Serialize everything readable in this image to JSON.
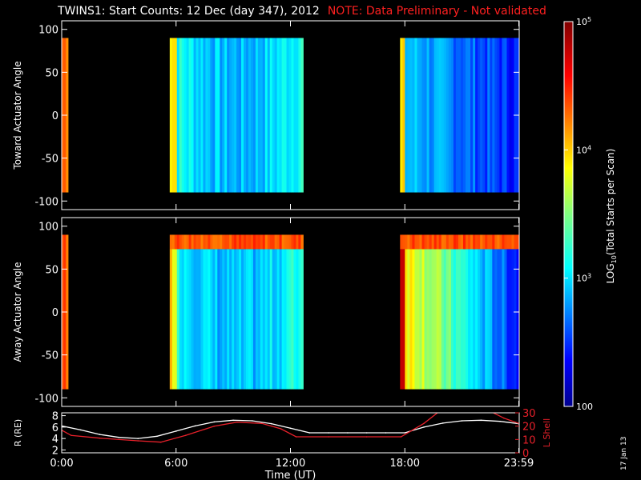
{
  "header": {
    "title": "TWINS1: Start Counts: 12 Dec (day 347), 2012",
    "note": "NOTE: Data Preliminary - Not validated"
  },
  "footer": {
    "date_stamp": "17 Jan 13"
  },
  "colors": {
    "background": "#000000",
    "axis": "#ffffff",
    "note": "#ff2020",
    "r_line": "#ffffff",
    "l_shell_line": "#e8202a"
  },
  "chart_data": [
    {
      "type": "heatmap",
      "id": "toward",
      "title": "",
      "ylabel": "Toward Actuator Angle",
      "xlabel": "",
      "xlim": [
        "0:00",
        "23:59"
      ],
      "ylim": [
        -110,
        110
      ],
      "yticks": [
        100,
        50,
        0,
        -50,
        -100
      ],
      "y_data_range": [
        -90,
        90
      ],
      "data_intervals_ut": [
        [
          "0:00",
          "0:20"
        ],
        [
          "5:40",
          "12:40"
        ],
        [
          "17:45",
          "23:59"
        ]
      ],
      "colorscale": "log10 counts, 10^2 to 10^5",
      "grid": false
    },
    {
      "type": "heatmap",
      "id": "away",
      "title": "",
      "ylabel": "Away Actuator Angle",
      "xlabel": "",
      "xlim": [
        "0:00",
        "23:59"
      ],
      "ylim": [
        -110,
        110
      ],
      "yticks": [
        100,
        50,
        0,
        -50,
        -100
      ],
      "y_data_range": [
        -90,
        90
      ],
      "data_intervals_ut": [
        [
          "0:00",
          "0:20"
        ],
        [
          "5:40",
          "12:40"
        ],
        [
          "17:45",
          "23:59"
        ]
      ],
      "colorscale": "log10 counts, 10^2 to 10^5",
      "grid": false
    },
    {
      "type": "line",
      "id": "orbit",
      "title": "",
      "xlabel": "Time (UT)",
      "xticks": [
        "0:00",
        "6:00",
        "12:00",
        "18:00",
        "23:59"
      ],
      "x_hours": [
        0,
        6,
        12,
        18,
        23.98
      ],
      "left_axis": {
        "label": "R (RE)",
        "ticks": [
          2,
          4,
          6,
          8
        ],
        "ylim": [
          1.5,
          8.5
        ]
      },
      "right_axis": {
        "label": "L Shell",
        "ticks": [
          0,
          10,
          20,
          30
        ],
        "ylim": [
          0,
          30
        ]
      },
      "series": [
        {
          "axis": "left",
          "x": [
            0,
            1,
            2,
            3,
            4,
            5,
            6,
            7,
            8,
            9,
            10,
            11,
            12,
            13,
            14,
            15,
            16,
            17,
            18,
            19,
            20,
            21,
            22,
            23,
            23.98
          ],
          "values": [
            6.2,
            5.5,
            4.7,
            4.2,
            4.0,
            4.4,
            5.3,
            6.2,
            6.9,
            7.2,
            7.1,
            6.6,
            5.8,
            5.0,
            5.0,
            5.0,
            5.0,
            5.0,
            5.0,
            6.0,
            6.7,
            7.1,
            7.2,
            7.0,
            6.6
          ]
        },
        {
          "axis": "right",
          "x": [
            0,
            0.5,
            2,
            4,
            5.2,
            6.5,
            8,
            9.2,
            10.5,
            11.5,
            12.3,
            14,
            16,
            17.8,
            19,
            19.8,
            22.5,
            23.2,
            23.98
          ],
          "values": [
            17,
            13,
            11,
            9,
            8,
            13,
            20,
            23,
            22,
            18,
            12,
            12,
            12,
            12,
            22,
            31,
            31,
            26,
            22
          ]
        }
      ]
    }
  ],
  "colorbar": {
    "label": "LOG10(Total Starts per Scan)",
    "label_base": "LOG",
    "label_sub": "10",
    "label_rest": "(Total Starts per Scan)",
    "ticks": [
      {
        "base": "10",
        "exp": "5",
        "value": 100000
      },
      {
        "base": "10",
        "exp": "4",
        "value": 10000
      },
      {
        "base": "10",
        "exp": "3",
        "value": 1000
      },
      {
        "base": "100",
        "exp": "",
        "value": 100
      }
    ]
  }
}
